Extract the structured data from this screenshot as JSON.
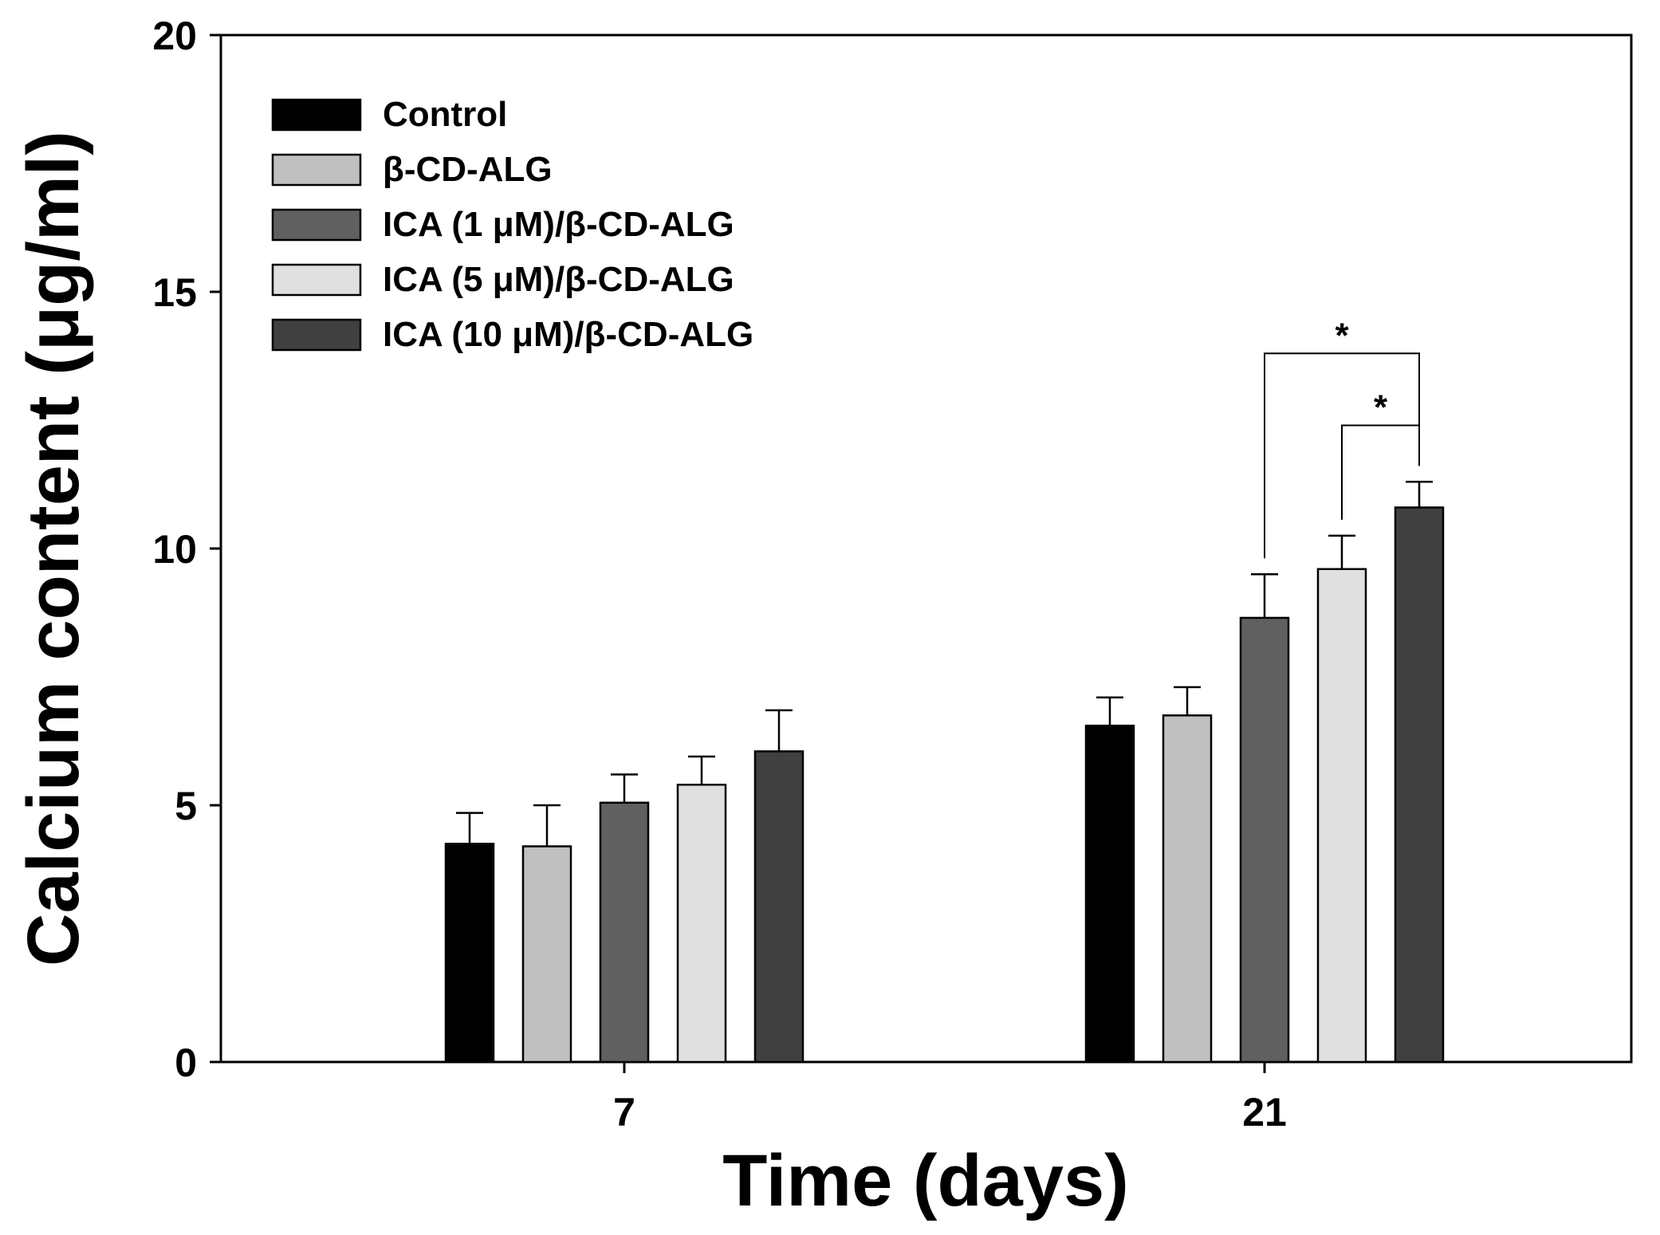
{
  "chart_data": {
    "type": "bar",
    "title": "",
    "xlabel": "Time (days)",
    "ylabel": "Calcium content (μg/ml)",
    "ylim": [
      0,
      20
    ],
    "yticks": [
      "0",
      "5",
      "10",
      "15",
      "20"
    ],
    "categories": [
      "7",
      "21"
    ],
    "series": [
      {
        "name": "Control",
        "color": "#000000",
        "values": [
          4.25,
          6.55
        ],
        "errors": [
          0.6,
          0.55
        ]
      },
      {
        "name": "β-CD-ALG",
        "color": "#c0c0c0",
        "values": [
          4.2,
          6.75
        ],
        "errors": [
          0.8,
          0.55
        ]
      },
      {
        "name": "ICA (1 μM)/β-CD-ALG",
        "color": "#606060",
        "values": [
          5.05,
          8.65
        ],
        "errors": [
          0.55,
          0.85
        ]
      },
      {
        "name": "ICA (5 μM)/β-CD-ALG",
        "color": "#e0e0e0",
        "values": [
          5.4,
          9.6
        ],
        "errors": [
          0.55,
          0.65
        ]
      },
      {
        "name": "ICA (10 μM)/β-CD-ALG",
        "color": "#404040",
        "values": [
          6.05,
          10.8
        ],
        "errors": [
          0.8,
          0.5
        ]
      }
    ],
    "annotations": [
      {
        "text": "*",
        "category": "21",
        "from_series": 2,
        "to_series": 4,
        "level": 13.8
      },
      {
        "text": "*",
        "category": "21",
        "from_series": 3,
        "to_series": 4,
        "level": 12.4
      }
    ],
    "legend_position": "top-left",
    "grid": false
  }
}
